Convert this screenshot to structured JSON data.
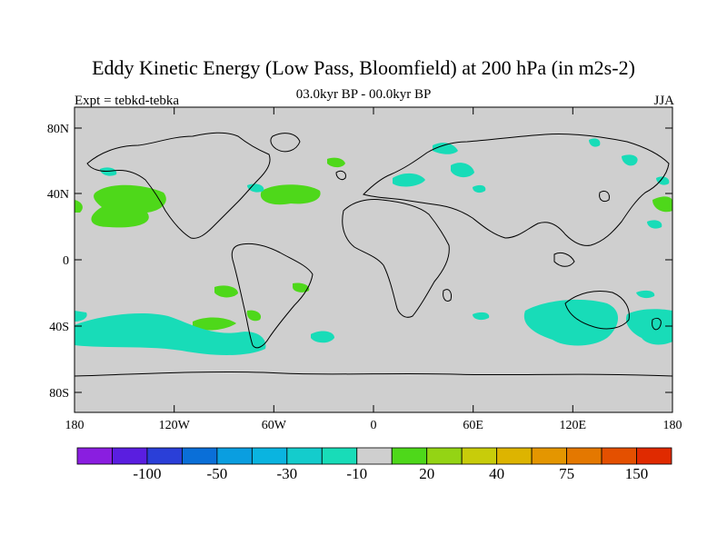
{
  "title": "Eddy Kinetic Energy (Low Pass, Bloomfield) at 200 hPa (in m2s-2)",
  "subtitle_left": "Expt = tebkd-tebka",
  "subtitle_center": "03.0kyr BP - 00.0kyr BP",
  "subtitle_right": "JJA",
  "lat_labels": [
    "80N",
    "40N",
    "0",
    "40S",
    "80S"
  ],
  "lon_labels": [
    "180",
    "120W",
    "60W",
    "0",
    "60E",
    "120E",
    "180"
  ],
  "colorbar": {
    "colors": [
      "#8a1ee0",
      "#5a1ee0",
      "#2a3fd8",
      "#0a6fd8",
      "#0a9ee0",
      "#0ab4e0",
      "#14cccc",
      "#18dcb8",
      "#cfcfcf",
      "#4ed81a",
      "#94d414",
      "#c8cc0a",
      "#ddb400",
      "#e49600",
      "#e47800",
      "#e45000",
      "#e02a00"
    ],
    "labels": [
      "-100",
      "-50",
      "-30",
      "-10",
      "20",
      "40",
      "75",
      "150"
    ]
  },
  "colors": {
    "land_sea_bg": "#cfcfcf",
    "negative": "#18dcb8",
    "positive": "#4ed81a"
  }
}
